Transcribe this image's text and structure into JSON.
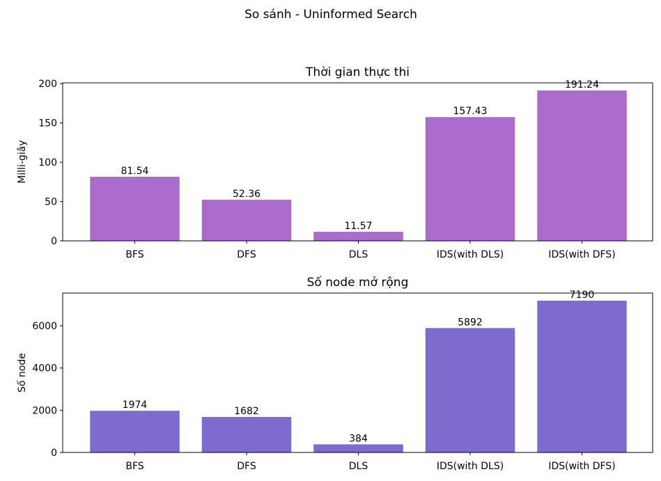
{
  "figure_title": "So sánh - Uninformed Search",
  "chart_data": [
    {
      "type": "bar",
      "title": "Thời gian thực thi",
      "xlabel": "",
      "ylabel": "Milli-giây",
      "categories": [
        "BFS",
        "DFS",
        "DLS",
        "IDS(with DLS)",
        "IDS(with DFS)"
      ],
      "values": [
        81.54,
        52.36,
        11.57,
        157.43,
        191.24
      ],
      "value_labels": [
        "81.54",
        "52.36",
        "11.57",
        "157.43",
        "191.24"
      ],
      "ylim": [
        0,
        201
      ],
      "yticks": [
        0,
        50,
        100,
        150,
        200
      ],
      "bar_color": "#aa6bcd"
    },
    {
      "type": "bar",
      "title": "Số node mở rộng",
      "xlabel": "",
      "ylabel": "Số node",
      "categories": [
        "BFS",
        "DFS",
        "DLS",
        "IDS(with DLS)",
        "IDS(with DFS)"
      ],
      "values": [
        1974,
        1682,
        384,
        5892,
        7190
      ],
      "value_labels": [
        "1974",
        "1682",
        "384",
        "5892",
        "7190"
      ],
      "ylim": [
        0,
        7550
      ],
      "yticks": [
        0,
        2000,
        4000,
        6000
      ],
      "bar_color": "#7d6bcd"
    }
  ]
}
